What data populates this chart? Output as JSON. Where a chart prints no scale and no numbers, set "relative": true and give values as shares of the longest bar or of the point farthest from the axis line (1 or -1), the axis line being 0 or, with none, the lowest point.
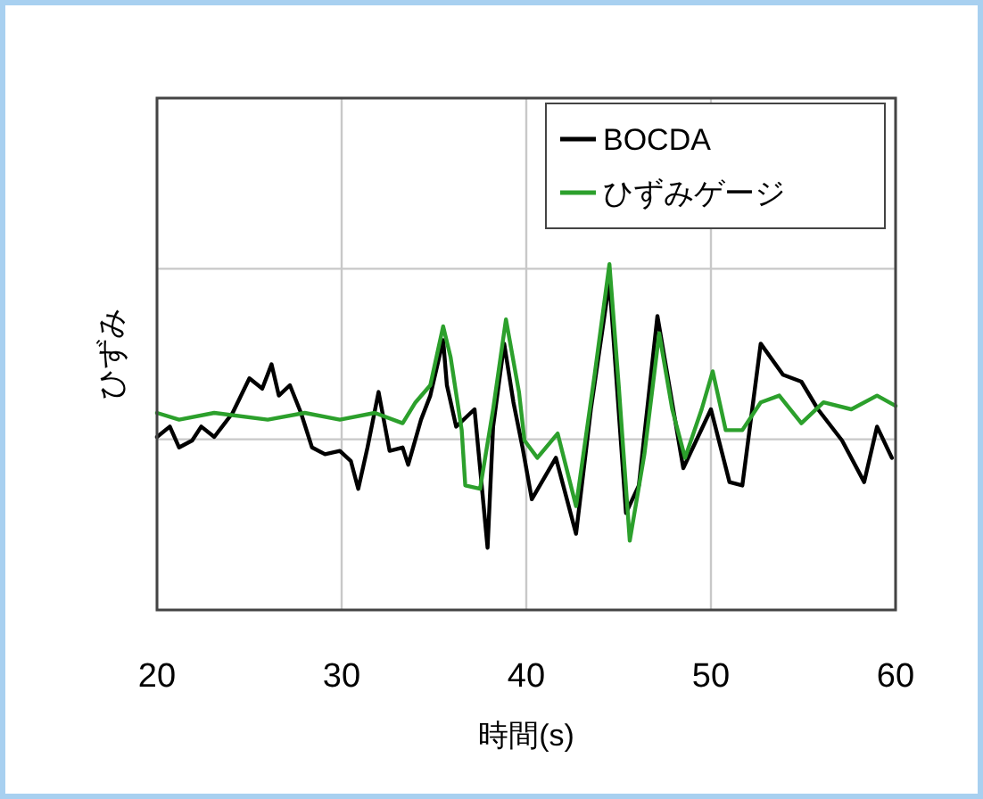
{
  "chart_data": {
    "type": "line",
    "relative": true,
    "xlabel": "時間(s)",
    "ylabel": "ひずみ",
    "xlim": [
      20,
      60
    ],
    "xticks": [
      20,
      30,
      40,
      50,
      60
    ],
    "grid": true,
    "legend": "top right",
    "series": [
      {
        "name": "BOCDA",
        "color": "#000000",
        "x": [
          20,
          20.7,
          21.2,
          21.9,
          22.4,
          23.1,
          24.1,
          25,
          25.7,
          26.2,
          26.6,
          27.2,
          27.8,
          28.4,
          29.1,
          29.9,
          30.5,
          30.9,
          31.4,
          32,
          32.6,
          33.3,
          33.6,
          34.3,
          34.8,
          35.5,
          35.7,
          36.2,
          37.2,
          37.9,
          38.2,
          38.8,
          39.3,
          39.8,
          40.3,
          41.6,
          42.7,
          43.5,
          44.5,
          45.4,
          46.1,
          47.1,
          48.5,
          50,
          51,
          51.7,
          52.7,
          53.9,
          54.9,
          55.8,
          57.1,
          58.3,
          59,
          59.8
        ],
        "values": [
          0.5,
          0.53,
          0.47,
          0.49,
          0.53,
          0.5,
          0.57,
          0.67,
          0.64,
          0.71,
          0.62,
          0.65,
          0.57,
          0.47,
          0.45,
          0.46,
          0.43,
          0.35,
          0.47,
          0.63,
          0.46,
          0.47,
          0.42,
          0.55,
          0.62,
          0.78,
          0.65,
          0.53,
          0.58,
          0.18,
          0.53,
          0.77,
          0.6,
          0.47,
          0.32,
          0.44,
          0.22,
          0.58,
          0.95,
          0.28,
          0.36,
          0.85,
          0.41,
          0.58,
          0.37,
          0.36,
          0.77,
          0.68,
          0.66,
          0.58,
          0.49,
          0.37,
          0.53,
          0.44
        ]
      },
      {
        "name": "ひずみゲージ",
        "color": "#2ca02c",
        "x": [
          20,
          21.2,
          23.1,
          26,
          28,
          29.9,
          31.8,
          33.3,
          34,
          34.8,
          35.5,
          35.9,
          36.5,
          36.7,
          37.5,
          38.2,
          38.9,
          39.6,
          39.9,
          40.6,
          41.7,
          42.7,
          43.7,
          44.5,
          45,
          45.6,
          46.4,
          47.2,
          47.9,
          48.6,
          49.5,
          50.1,
          50.8,
          51.7,
          52.7,
          53.7,
          54.9,
          56.1,
          57.6,
          59,
          60
        ],
        "values": [
          0.57,
          0.55,
          0.57,
          0.55,
          0.57,
          0.55,
          0.57,
          0.54,
          0.6,
          0.65,
          0.82,
          0.73,
          0.52,
          0.36,
          0.35,
          0.58,
          0.84,
          0.63,
          0.49,
          0.44,
          0.51,
          0.3,
          0.68,
          1.0,
          0.65,
          0.2,
          0.45,
          0.8,
          0.58,
          0.44,
          0.58,
          0.69,
          0.52,
          0.52,
          0.6,
          0.62,
          0.54,
          0.6,
          0.58,
          0.62,
          0.59
        ]
      }
    ]
  }
}
